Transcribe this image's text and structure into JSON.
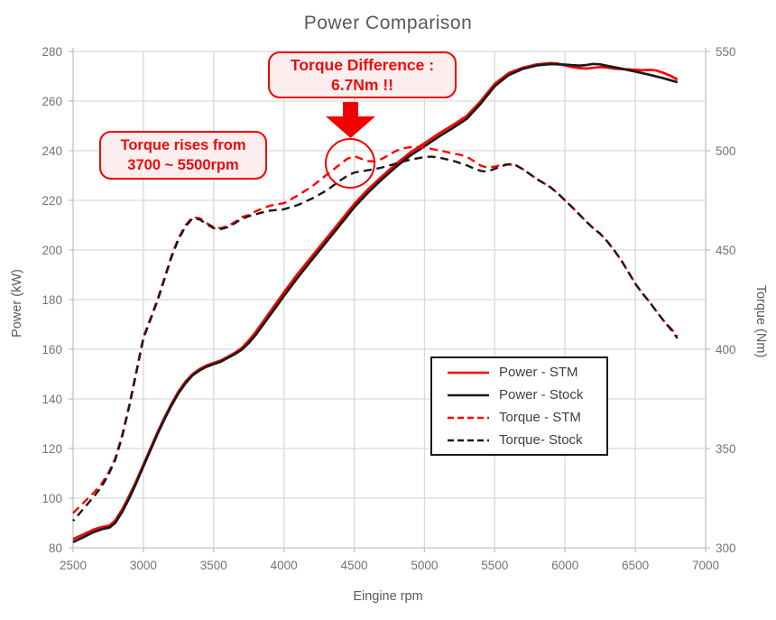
{
  "title": "Power Comparison",
  "annotations": {
    "torque_difference": {
      "line1": "Torque Difference :",
      "line2": "6.7Nm !!"
    },
    "torque_rises": {
      "line1": "Torque rises from",
      "line2": "3700 ~ 5500rpm"
    }
  },
  "legend": {
    "items": [
      {
        "label": "Power - STM",
        "color": "#ff0000",
        "dash": "none"
      },
      {
        "label": "Power - Stock",
        "color": "#1a1a1a",
        "dash": "none"
      },
      {
        "label": "Torque - STM",
        "color": "#ff0000",
        "dash": "dashed"
      },
      {
        "label": "Torque- Stock",
        "color": "#1a1a1a",
        "dash": "dashed"
      }
    ]
  },
  "colors": {
    "stm": "#ff0000",
    "stock": "#1a1a1a",
    "annotation_red": "#f00000",
    "grid": "#d9d9d9",
    "spine": "#c3c3c3",
    "tick_label": "#737373",
    "title_gray": "#595959"
  },
  "chart_data": {
    "type": "line",
    "title": "Power Comparison",
    "xlabel": "Eingine rpm",
    "ylabel_left": "Power (kW)",
    "ylabel_right": "Torque (Nm)",
    "grid": true,
    "legend_position": "lower-right",
    "x_axis": {
      "min": 2500,
      "max": 7000,
      "ticks": [
        2500,
        3000,
        3500,
        4000,
        4500,
        5000,
        5500,
        6000,
        6500,
        7000
      ]
    },
    "y_left_axis": {
      "min": 80,
      "max": 280,
      "ticks": [
        80,
        100,
        120,
        140,
        160,
        180,
        200,
        220,
        240,
        260,
        280
      ]
    },
    "y_right_axis": {
      "min": 300,
      "max": 550,
      "ticks": [
        300,
        350,
        400,
        450,
        500,
        550
      ]
    },
    "series": [
      {
        "name": "Power - STM",
        "axis": "left",
        "color": "#ff0000",
        "style": "solid",
        "points": [
          [
            2500,
            83.5
          ],
          [
            2570,
            85.3
          ],
          [
            2640,
            87.2
          ],
          [
            2700,
            88.3
          ],
          [
            2760,
            89.0
          ],
          [
            2800,
            91.0
          ],
          [
            2850,
            95.5
          ],
          [
            2900,
            101.0
          ],
          [
            2950,
            107.0
          ],
          [
            3000,
            113.5
          ],
          [
            3050,
            120.0
          ],
          [
            3100,
            126.5
          ],
          [
            3150,
            132.5
          ],
          [
            3200,
            138.0
          ],
          [
            3250,
            143.0
          ],
          [
            3300,
            147.0
          ],
          [
            3350,
            150.0
          ],
          [
            3400,
            152.0
          ],
          [
            3450,
            153.5
          ],
          [
            3500,
            154.5
          ],
          [
            3550,
            155.5
          ],
          [
            3600,
            157.0
          ],
          [
            3650,
            158.5
          ],
          [
            3700,
            160.5
          ],
          [
            3750,
            163.5
          ],
          [
            3800,
            167.0
          ],
          [
            3900,
            175.0
          ],
          [
            4000,
            183.0
          ],
          [
            4100,
            190.5
          ],
          [
            4200,
            197.5
          ],
          [
            4300,
            204.5
          ],
          [
            4400,
            211.5
          ],
          [
            4500,
            218.5
          ],
          [
            4600,
            224.5
          ],
          [
            4700,
            229.8
          ],
          [
            4800,
            234.8
          ],
          [
            4900,
            239.3
          ],
          [
            5000,
            243.0
          ],
          [
            5100,
            246.8
          ],
          [
            5200,
            250.3
          ],
          [
            5300,
            254.0
          ],
          [
            5400,
            260.0
          ],
          [
            5500,
            267.0
          ],
          [
            5600,
            271.3
          ],
          [
            5700,
            273.5
          ],
          [
            5800,
            274.8
          ],
          [
            5900,
            275.3
          ],
          [
            5950,
            275.1
          ],
          [
            6000,
            274.4
          ],
          [
            6050,
            273.7
          ],
          [
            6100,
            273.3
          ],
          [
            6150,
            273.1
          ],
          [
            6200,
            273.4
          ],
          [
            6250,
            273.7
          ],
          [
            6300,
            273.5
          ],
          [
            6350,
            273.1
          ],
          [
            6400,
            272.9
          ],
          [
            6450,
            272.8
          ],
          [
            6500,
            272.6
          ],
          [
            6550,
            272.4
          ],
          [
            6600,
            272.6
          ],
          [
            6650,
            272.3
          ],
          [
            6700,
            271.4
          ],
          [
            6750,
            270.2
          ],
          [
            6800,
            268.7
          ]
        ]
      },
      {
        "name": "Power - Stock",
        "axis": "left",
        "color": "#1a1a1a",
        "style": "solid",
        "points": [
          [
            2500,
            82.3
          ],
          [
            2570,
            84.2
          ],
          [
            2640,
            86.2
          ],
          [
            2700,
            87.4
          ],
          [
            2760,
            88.2
          ],
          [
            2800,
            90.0
          ],
          [
            2850,
            94.5
          ],
          [
            2900,
            100.0
          ],
          [
            2950,
            106.2
          ],
          [
            3000,
            112.8
          ],
          [
            3050,
            119.3
          ],
          [
            3100,
            125.8
          ],
          [
            3150,
            131.8
          ],
          [
            3200,
            137.3
          ],
          [
            3250,
            142.3
          ],
          [
            3300,
            146.3
          ],
          [
            3350,
            149.5
          ],
          [
            3400,
            151.5
          ],
          [
            3450,
            153.0
          ],
          [
            3500,
            154.0
          ],
          [
            3550,
            155.0
          ],
          [
            3600,
            156.5
          ],
          [
            3650,
            158.0
          ],
          [
            3700,
            159.8
          ],
          [
            3750,
            162.5
          ],
          [
            3800,
            165.8
          ],
          [
            3900,
            173.6
          ],
          [
            4000,
            181.5
          ],
          [
            4100,
            189.0
          ],
          [
            4200,
            196.1
          ],
          [
            4300,
            203.1
          ],
          [
            4400,
            210.1
          ],
          [
            4500,
            217.2
          ],
          [
            4600,
            223.2
          ],
          [
            4700,
            228.6
          ],
          [
            4800,
            233.6
          ],
          [
            4900,
            238.1
          ],
          [
            5000,
            241.8
          ],
          [
            5100,
            245.6
          ],
          [
            5200,
            249.1
          ],
          [
            5300,
            252.8
          ],
          [
            5400,
            259.0
          ],
          [
            5500,
            266.0
          ],
          [
            5600,
            270.5
          ],
          [
            5700,
            273.0
          ],
          [
            5800,
            274.4
          ],
          [
            5900,
            274.9
          ],
          [
            6000,
            274.7
          ],
          [
            6100,
            274.3
          ],
          [
            6150,
            274.5
          ],
          [
            6200,
            275.0
          ],
          [
            6250,
            274.8
          ],
          [
            6300,
            274.2
          ],
          [
            6400,
            273.1
          ],
          [
            6500,
            271.9
          ],
          [
            6600,
            270.6
          ],
          [
            6700,
            269.2
          ],
          [
            6750,
            268.4
          ],
          [
            6800,
            267.6
          ]
        ]
      },
      {
        "name": "Torque - STM",
        "axis": "right",
        "color": "#ff0000",
        "style": "dashed",
        "points": [
          [
            2500,
            317.5
          ],
          [
            2550,
            321.0
          ],
          [
            2600,
            324.5
          ],
          [
            2650,
            328.0
          ],
          [
            2700,
            332.0
          ],
          [
            2750,
            337.5
          ],
          [
            2800,
            345.0
          ],
          [
            2850,
            357.0
          ],
          [
            2900,
            372.0
          ],
          [
            2950,
            389.0
          ],
          [
            3000,
            406.0
          ],
          [
            3050,
            415.5
          ],
          [
            3100,
            425.0
          ],
          [
            3150,
            436.0
          ],
          [
            3200,
            447.0
          ],
          [
            3250,
            456.0
          ],
          [
            3300,
            462.5
          ],
          [
            3350,
            466.5
          ],
          [
            3400,
            466.0
          ],
          [
            3450,
            463.5
          ],
          [
            3500,
            461.5
          ],
          [
            3550,
            461.0
          ],
          [
            3600,
            462.0
          ],
          [
            3650,
            464.0
          ],
          [
            3700,
            466.5
          ],
          [
            3750,
            467.7
          ],
          [
            3800,
            469.5
          ],
          [
            3850,
            471.0
          ],
          [
            3900,
            472.3
          ],
          [
            3950,
            473.0
          ],
          [
            4000,
            473.6
          ],
          [
            4100,
            477.5
          ],
          [
            4200,
            482.0
          ],
          [
            4300,
            487.7
          ],
          [
            4400,
            493.2
          ],
          [
            4450,
            495.9
          ],
          [
            4500,
            497.3
          ],
          [
            4550,
            495.9
          ],
          [
            4600,
            494.8
          ],
          [
            4650,
            494.6
          ],
          [
            4700,
            496.0
          ],
          [
            4750,
            498.0
          ],
          [
            4800,
            500.0
          ],
          [
            4850,
            501.2
          ],
          [
            4900,
            501.8
          ],
          [
            4950,
            501.9
          ],
          [
            5000,
            501.6
          ],
          [
            5050,
            500.9
          ],
          [
            5100,
            500.2
          ],
          [
            5150,
            499.5
          ],
          [
            5200,
            498.6
          ],
          [
            5250,
            498.0
          ],
          [
            5300,
            497.0
          ],
          [
            5350,
            494.8
          ],
          [
            5400,
            492.5
          ],
          [
            5450,
            491.4
          ],
          [
            5500,
            492.0
          ],
          [
            5550,
            492.9
          ],
          [
            5600,
            493.2
          ],
          [
            5650,
            492.7
          ],
          [
            5700,
            490.7
          ],
          [
            5750,
            488.2
          ],
          [
            5800,
            485.7
          ],
          [
            5850,
            483.6
          ],
          [
            5900,
            481.4
          ],
          [
            5950,
            478.4
          ],
          [
            6000,
            475.0
          ],
          [
            6050,
            471.6
          ],
          [
            6100,
            468.0
          ],
          [
            6150,
            464.3
          ],
          [
            6200,
            461.0
          ],
          [
            6250,
            458.2
          ],
          [
            6300,
            454.3
          ],
          [
            6350,
            449.8
          ],
          [
            6400,
            444.8
          ],
          [
            6450,
            438.9
          ],
          [
            6500,
            433.0
          ],
          [
            6550,
            428.2
          ],
          [
            6600,
            423.9
          ],
          [
            6650,
            419.1
          ],
          [
            6700,
            414.5
          ],
          [
            6750,
            410.7
          ],
          [
            6800,
            406.6
          ]
        ]
      },
      {
        "name": "Torque- Stock",
        "axis": "right",
        "color": "#1a1a1a",
        "style": "dashed",
        "points": [
          [
            2500,
            313.6
          ],
          [
            2550,
            317.7
          ],
          [
            2600,
            321.8
          ],
          [
            2650,
            326.0
          ],
          [
            2700,
            330.5
          ],
          [
            2750,
            336.5
          ],
          [
            2800,
            344.2
          ],
          [
            2850,
            356.2
          ],
          [
            2900,
            371.2
          ],
          [
            2950,
            388.2
          ],
          [
            3000,
            405.3
          ],
          [
            3050,
            414.8
          ],
          [
            3100,
            424.3
          ],
          [
            3150,
            435.3
          ],
          [
            3200,
            446.3
          ],
          [
            3250,
            455.3
          ],
          [
            3300,
            461.8
          ],
          [
            3350,
            465.9
          ],
          [
            3400,
            465.4
          ],
          [
            3450,
            463.0
          ],
          [
            3500,
            461.0
          ],
          [
            3550,
            460.5
          ],
          [
            3600,
            461.5
          ],
          [
            3650,
            463.4
          ],
          [
            3700,
            465.7
          ],
          [
            3750,
            467.0
          ],
          [
            3800,
            468.0
          ],
          [
            3850,
            469.0
          ],
          [
            3900,
            469.8
          ],
          [
            3950,
            470.2
          ],
          [
            4000,
            470.5
          ],
          [
            4100,
            472.7
          ],
          [
            4200,
            475.9
          ],
          [
            4300,
            479.8
          ],
          [
            4400,
            485.0
          ],
          [
            4450,
            487.3
          ],
          [
            4500,
            489.0
          ],
          [
            4550,
            489.6
          ],
          [
            4600,
            490.2
          ],
          [
            4650,
            490.8
          ],
          [
            4700,
            491.6
          ],
          [
            4800,
            493.6
          ],
          [
            4900,
            495.5
          ],
          [
            5000,
            496.8
          ],
          [
            5050,
            497.0
          ],
          [
            5100,
            496.6
          ],
          [
            5200,
            495.0
          ],
          [
            5300,
            492.7
          ],
          [
            5350,
            491.1
          ],
          [
            5400,
            489.8
          ],
          [
            5450,
            489.5
          ],
          [
            5500,
            490.9
          ],
          [
            5550,
            492.3
          ],
          [
            5600,
            493.2
          ],
          [
            5650,
            492.7
          ],
          [
            5700,
            490.7
          ],
          [
            5750,
            488.2
          ],
          [
            5800,
            485.7
          ],
          [
            5850,
            483.6
          ],
          [
            5900,
            481.4
          ],
          [
            5950,
            478.4
          ],
          [
            6000,
            475.0
          ],
          [
            6050,
            471.6
          ],
          [
            6100,
            468.0
          ],
          [
            6150,
            464.3
          ],
          [
            6200,
            461.0
          ],
          [
            6250,
            458.2
          ],
          [
            6300,
            454.3
          ],
          [
            6350,
            449.8
          ],
          [
            6400,
            444.8
          ],
          [
            6450,
            438.9
          ],
          [
            6500,
            433.0
          ],
          [
            6550,
            428.2
          ],
          [
            6600,
            423.9
          ],
          [
            6650,
            419.1
          ],
          [
            6700,
            414.5
          ],
          [
            6750,
            410.2
          ],
          [
            6800,
            405.5
          ]
        ]
      }
    ]
  }
}
